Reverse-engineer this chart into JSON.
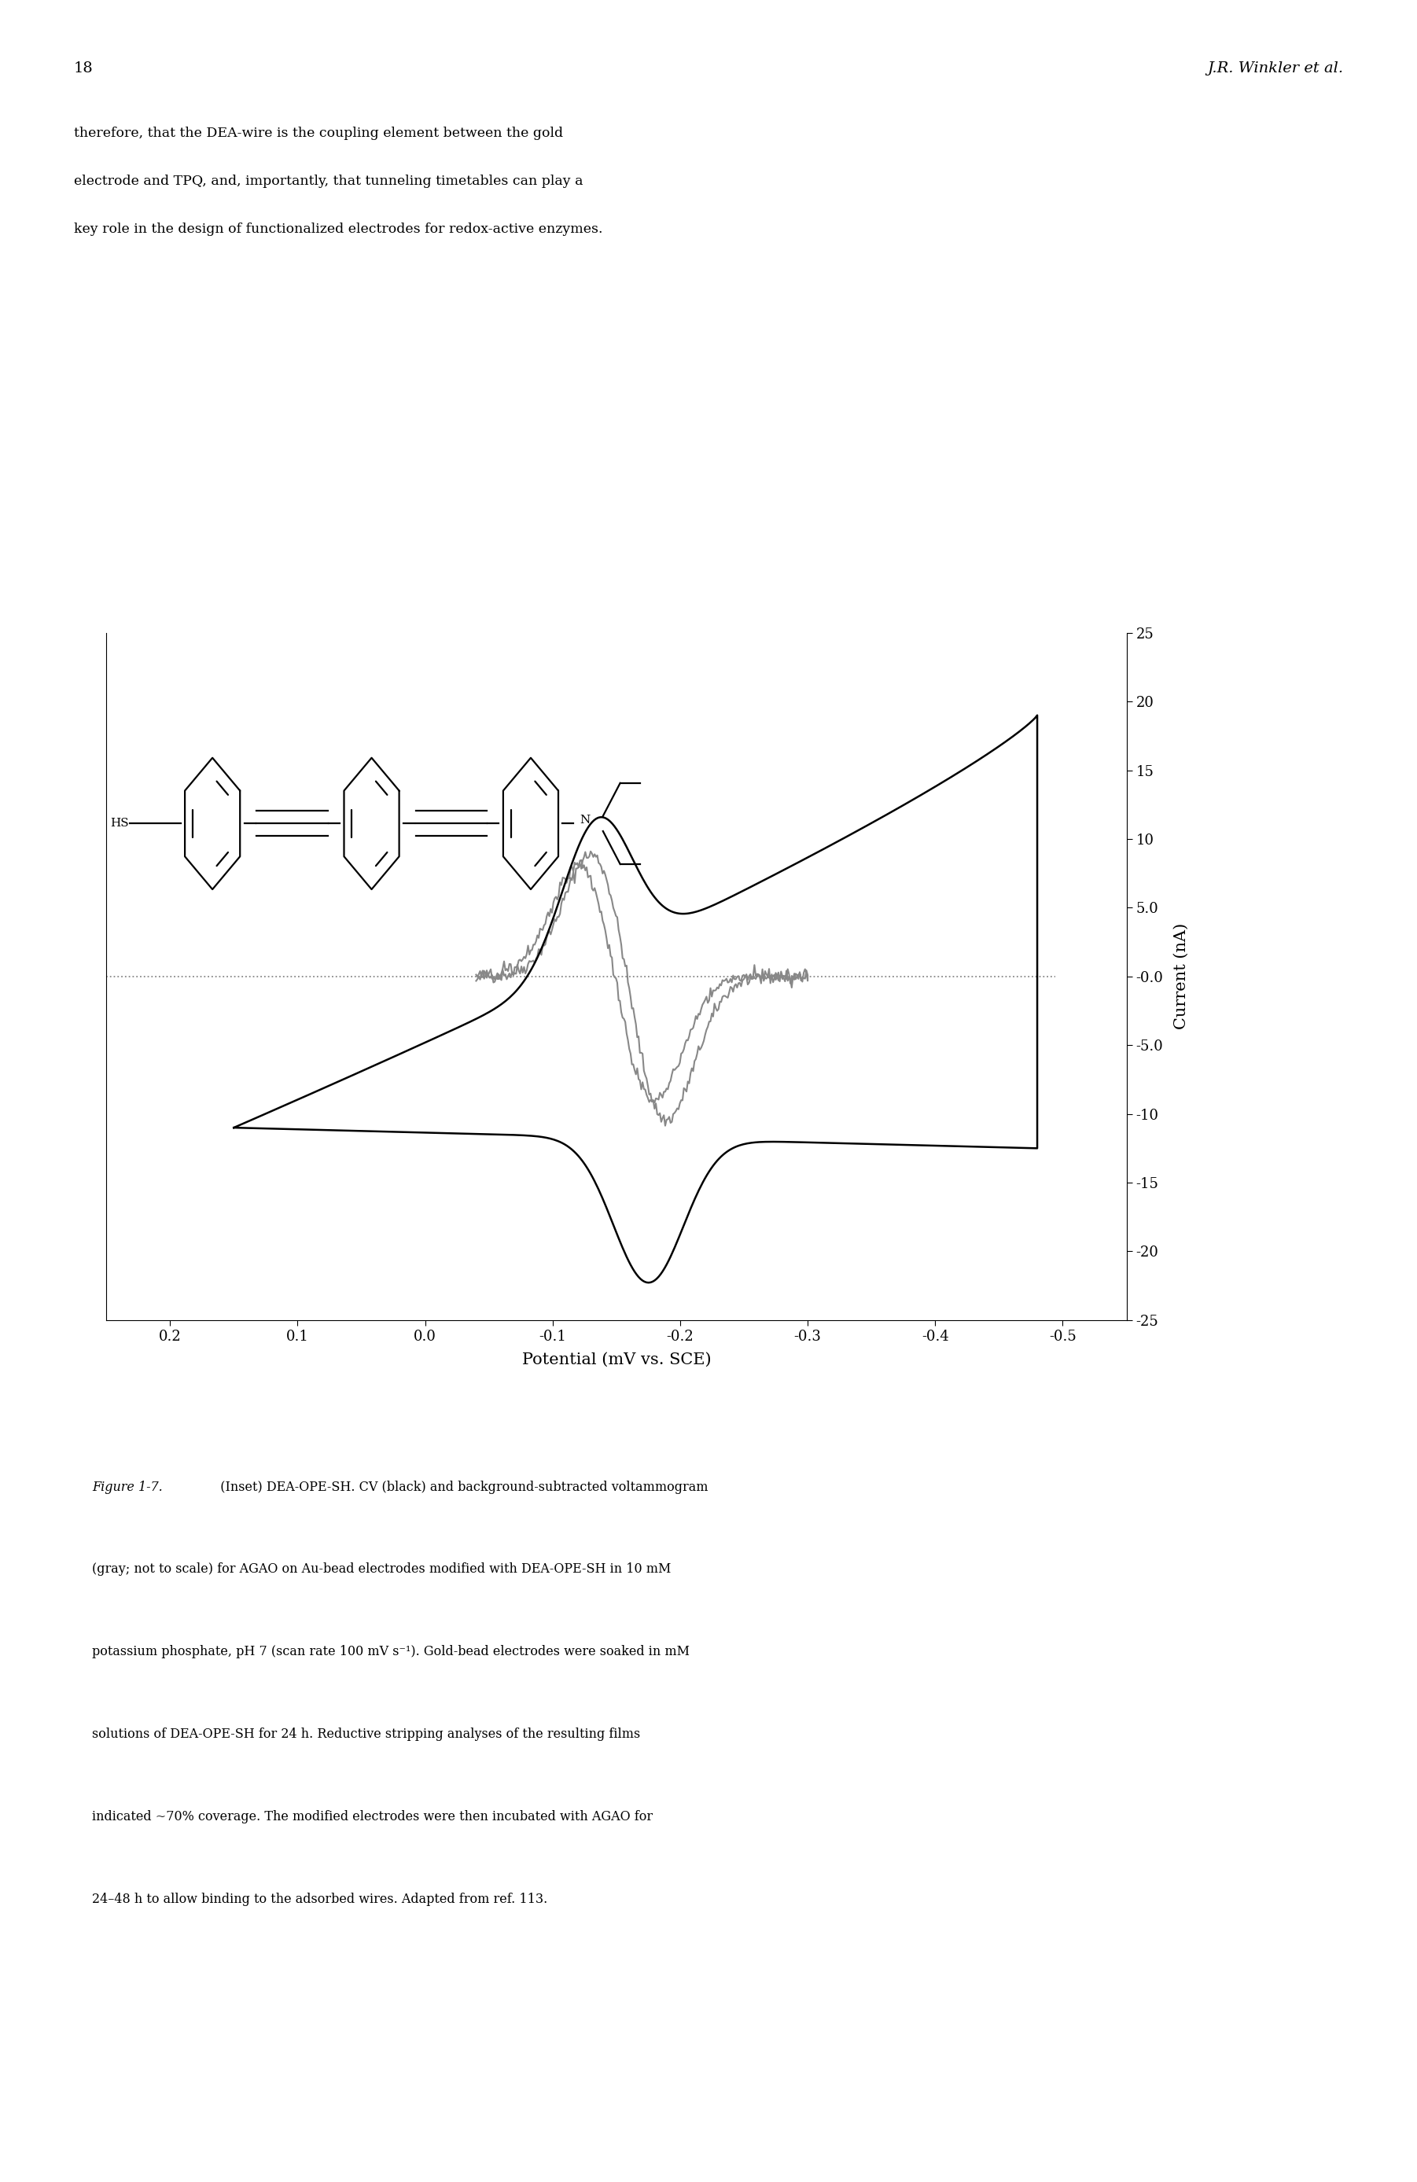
{
  "page_number": "18",
  "header_right": "J.R. Winkler et al.",
  "body_line1": "therefore, that the DEA-wire is the coupling element between the gold",
  "body_line2": "electrode and TPQ, and, importantly, that tunneling timetables can play a",
  "body_line3": "key role in the design of functionalized electrodes for redox-active enzymes.",
  "xlabel": "Potential (mV vs. SCE)",
  "ylabel": "Current (nA)",
  "xlim": [
    0.25,
    -0.55
  ],
  "ylim": [
    -25,
    25
  ],
  "xticks": [
    0.2,
    0.1,
    0.0,
    -0.1,
    -0.2,
    -0.3,
    -0.4,
    -0.5
  ],
  "xtick_labels": [
    "0.2",
    "0.1",
    "0.0",
    "-0.1",
    "-0.2",
    "-0.3",
    "-0.4",
    "-0.5"
  ],
  "yticks": [
    25,
    20,
    15,
    10,
    5.0,
    0.0,
    -5.0,
    -10,
    -15,
    -20,
    -25
  ],
  "ytick_labels": [
    "25",
    "20",
    "15",
    "10",
    "5.0",
    "-0.0",
    "-5.0",
    "-10",
    "-15",
    "-20",
    "-25"
  ],
  "dotted_line_y": 0.0,
  "cv_color": "#000000",
  "bgsub_color": "#888888",
  "background_color": "#ffffff",
  "dotted_line_color": "#888888",
  "cap_line1": "Figure 1-7.  (Inset) DEA-OPE-SH. CV (black) and background-subtracted voltammogram",
  "cap_line2": "(gray; not to scale) for AGAO on Au-bead electrodes modified with DEA-OPE-SH in 10 mM",
  "cap_line3": "potassium phosphate, pH 7 (scan rate 100 mV s⁻¹). Gold-bead electrodes were soaked in mM",
  "cap_line4": "solutions of DEA-OPE-SH for 24 h. Reductive stripping analyses of the resulting films",
  "cap_line5": "indicated ~70% coverage. The modified electrodes were then incubated with AGAO for",
  "cap_line6": "24–48 h to allow binding to the adsorbed wires. Adapted from ref. 113."
}
